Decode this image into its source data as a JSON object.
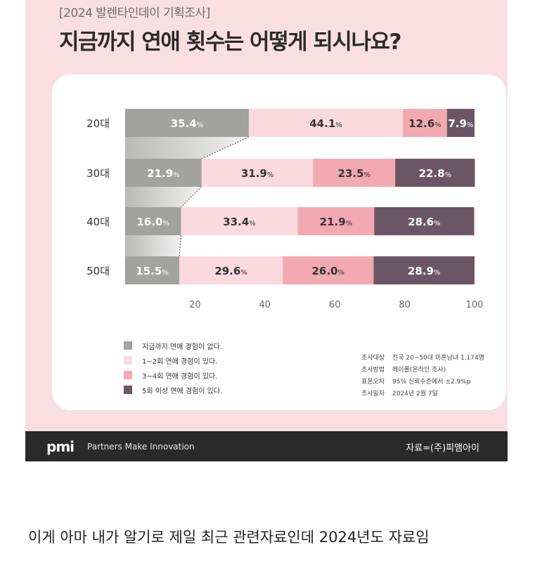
{
  "header": {
    "subtitle": "[2024 발렌타인데이 기획조사]",
    "title": "지금까지 연애 횟수는 어떻게 되시나요?"
  },
  "chart_data": {
    "type": "bar",
    "orientation": "horizontal",
    "stacked": true,
    "categories": [
      "20대",
      "30대",
      "40대",
      "50대"
    ],
    "series": [
      {
        "name": "지금까지 연애 경험이 없다.",
        "color": "#a2a29e",
        "values": [
          35.4,
          21.9,
          16.0,
          15.5
        ]
      },
      {
        "name": "1~2회 연애 경험이 있다.",
        "color": "#fadade",
        "values": [
          44.1,
          31.9,
          33.4,
          29.6
        ]
      },
      {
        "name": "3~4회 연애 경험이 있다.",
        "color": "#f3a9b1",
        "values": [
          12.6,
          23.5,
          21.9,
          26.0
        ]
      },
      {
        "name": "5회 이상 연애 경험이 있다.",
        "color": "#6c5665",
        "values": [
          7.9,
          22.8,
          28.6,
          28.9
        ]
      }
    ],
    "percent_sign": "%",
    "xlim": [
      0,
      100
    ],
    "xticks": [
      20,
      40,
      60,
      80,
      100
    ],
    "legend_position": "bottom-left"
  },
  "survey": [
    {
      "key": "조사대상",
      "value": "전국 20~50대 미혼남녀 1,174명"
    },
    {
      "key": "조사방법",
      "value": "헤이폴(온라인 조사)"
    },
    {
      "key": "표본오차",
      "value": "95% 신뢰수준에서 ±2.9%p"
    },
    {
      "key": "조사일자",
      "value": "2024년 2월 7일"
    }
  ],
  "footer": {
    "brand": "pmi",
    "tagline": "Partners Make Innovation",
    "source": "자료=(주)피앰아이"
  },
  "caption": "이게 아마 내가 알기로 제일 최근 관련자료인데 2024년도 자료임"
}
